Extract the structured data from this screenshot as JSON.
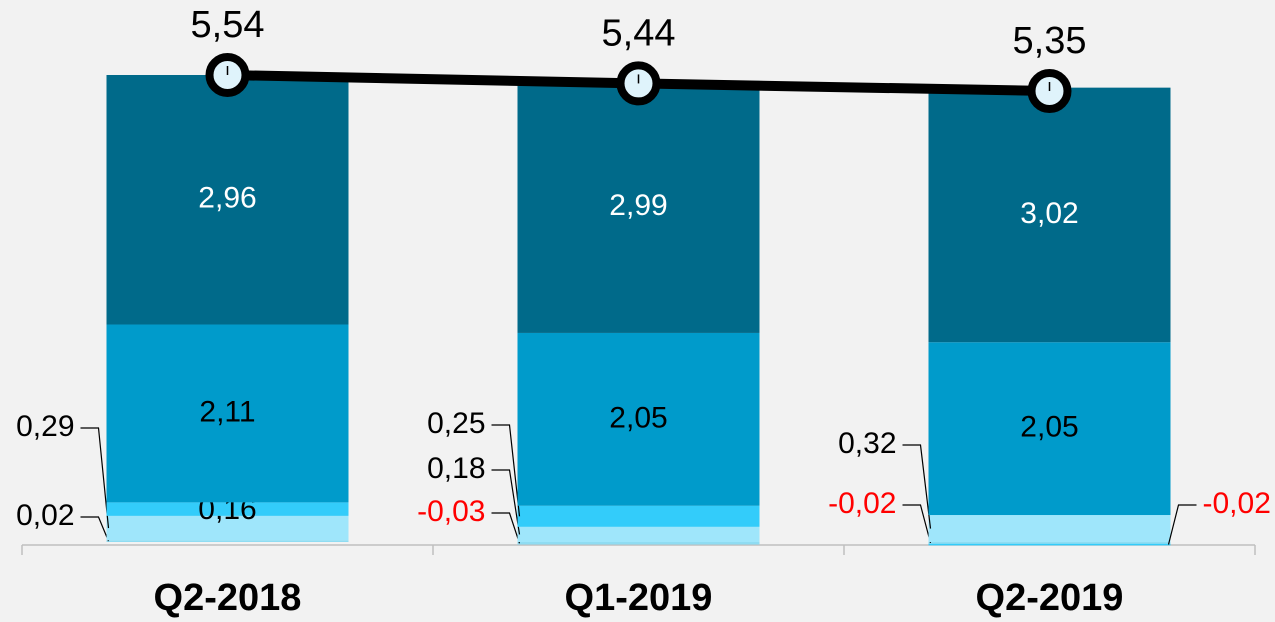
{
  "chart_data": {
    "type": "stacked_bar_line",
    "categories": [
      "Q2-2018",
      "Q1-2019",
      "Q2-2019"
    ],
    "negative_label_color": "#ff0000",
    "series": [
      {
        "color": "#8fdcf2",
        "values": [
          0.02,
          -0.03,
          -0.02
        ],
        "value_labels": [
          "0,02",
          "-0,03",
          "-0,02"
        ]
      },
      {
        "color": "#9fe6fb",
        "values": [
          0.29,
          0.18,
          0.32
        ],
        "value_labels": [
          "0,29",
          "0,18",
          "0,32"
        ]
      },
      {
        "color": "#33ccfa",
        "values": [
          0.16,
          0.25,
          -0.02
        ],
        "value_labels": [
          "0,16",
          "0,25",
          "-0,02"
        ]
      },
      {
        "color": "#009bcb",
        "values": [
          2.11,
          2.05,
          2.05
        ],
        "value_labels": [
          "2,11",
          "2,05",
          "2,05"
        ]
      },
      {
        "color": "#006a8a",
        "label_color": "#ffffff",
        "values": [
          2.96,
          2.99,
          3.02
        ],
        "value_labels": [
          "2,96",
          "2,99",
          "3,02"
        ]
      }
    ],
    "line": {
      "type": "line",
      "color": "#000000",
      "values": [
        5.54,
        5.44,
        5.35
      ],
      "value_labels": [
        "5,54",
        "5,44",
        "5,35"
      ]
    }
  }
}
